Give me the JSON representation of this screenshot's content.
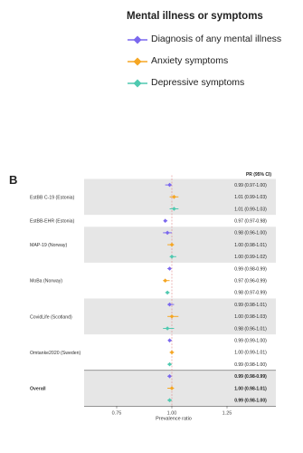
{
  "legend": {
    "title": "Mental illness or symptoms",
    "items": [
      {
        "label": "Diagnosis of any mental illness",
        "color": "#7b68ee",
        "icon": "diamond-marker"
      },
      {
        "label": "Anxiety symptoms",
        "color": "#f5a623",
        "icon": "diamond-marker"
      },
      {
        "label": "Depressive symptoms",
        "color": "#4fc9b0",
        "icon": "diamond-marker"
      }
    ]
  },
  "panel_letter": "B",
  "chart_data": {
    "type": "scatter",
    "subtype": "forest-plot",
    "ci_header": "PR (95% CI)",
    "xlabel": "Prevalence ratio",
    "xlim": [
      0.6,
      1.4
    ],
    "xticks": [
      0.75,
      1.0,
      1.25
    ],
    "xtick_labels": [
      "0.75",
      "1.00",
      "1.25"
    ],
    "reference_line": 1.0,
    "groups": [
      {
        "label": "EstBB C-19 (Estonia)",
        "shaded": true,
        "bold": false,
        "rows": [
          {
            "series": "Diagnosis of any mental illness",
            "pr": 0.99,
            "lo": 0.97,
            "hi": 1.0,
            "text": "0.99 (0.97-1.00)"
          },
          {
            "series": "Anxiety symptoms",
            "pr": 1.01,
            "lo": 0.99,
            "hi": 1.03,
            "text": "1.01 (0.99-1.03)"
          },
          {
            "series": "Depressive symptoms",
            "pr": 1.01,
            "lo": 0.99,
            "hi": 1.03,
            "text": "1.01 (0.99-1.03)"
          }
        ]
      },
      {
        "label": "EstBB-EHR (Estonia)",
        "shaded": false,
        "bold": false,
        "rows": [
          {
            "series": "Diagnosis of any mental illness",
            "pr": 0.97,
            "lo": 0.97,
            "hi": 0.98,
            "text": "0.97 (0.97-0.98)"
          }
        ]
      },
      {
        "label": "MAP-19 (Norway)",
        "shaded": true,
        "bold": false,
        "rows": [
          {
            "series": "Diagnosis of any mental illness",
            "pr": 0.98,
            "lo": 0.96,
            "hi": 1.0,
            "text": "0.98 (0.96-1.00)"
          },
          {
            "series": "Anxiety symptoms",
            "pr": 1.0,
            "lo": 0.98,
            "hi": 1.01,
            "text": "1.00 (0.98-1.01)"
          },
          {
            "series": "Depressive symptoms",
            "pr": 1.0,
            "lo": 0.99,
            "hi": 1.02,
            "text": "1.00 (0.99-1.02)"
          }
        ]
      },
      {
        "label": "MoBa (Norway)",
        "shaded": false,
        "bold": false,
        "rows": [
          {
            "series": "Diagnosis of any mental illness",
            "pr": 0.99,
            "lo": 0.98,
            "hi": 0.99,
            "text": "0.99 (0.98-0.99)"
          },
          {
            "series": "Anxiety symptoms",
            "pr": 0.97,
            "lo": 0.96,
            "hi": 0.99,
            "text": "0.97 (0.96-0.99)"
          },
          {
            "series": "Depressive symptoms",
            "pr": 0.98,
            "lo": 0.97,
            "hi": 0.99,
            "text": "0.98 (0.97-0.99)"
          }
        ]
      },
      {
        "label": "CovidLife (Scotland)",
        "shaded": true,
        "bold": false,
        "rows": [
          {
            "series": "Diagnosis of any mental illness",
            "pr": 0.99,
            "lo": 0.98,
            "hi": 1.01,
            "text": "0.99 (0.98-1.01)"
          },
          {
            "series": "Anxiety symptoms",
            "pr": 1.0,
            "lo": 0.98,
            "hi": 1.03,
            "text": "1.00 (0.98-1.03)"
          },
          {
            "series": "Depressive symptoms",
            "pr": 0.98,
            "lo": 0.96,
            "hi": 1.01,
            "text": "0.98 (0.96-1.01)"
          }
        ]
      },
      {
        "label": "Omtanke2020 (Sweden)",
        "shaded": false,
        "bold": false,
        "rows": [
          {
            "series": "Diagnosis of any mental illness",
            "pr": 0.99,
            "lo": 0.99,
            "hi": 1.0,
            "text": "0.99 (0.99-1.00)"
          },
          {
            "series": "Anxiety symptoms",
            "pr": 1.0,
            "lo": 0.99,
            "hi": 1.01,
            "text": "1.00 (0.99-1.01)"
          },
          {
            "series": "Depressive symptoms",
            "pr": 0.99,
            "lo": 0.98,
            "hi": 1.0,
            "text": "0.99 (0.98-1.00)"
          }
        ]
      },
      {
        "label": "Overall",
        "shaded": true,
        "bold": true,
        "rows": [
          {
            "series": "Diagnosis of any mental illness",
            "pr": 0.99,
            "lo": 0.98,
            "hi": 0.99,
            "text": "0.99 (0.98-0.99)"
          },
          {
            "series": "Anxiety symptoms",
            "pr": 1.0,
            "lo": 0.98,
            "hi": 1.01,
            "text": "1.00 (0.98-1.01)"
          },
          {
            "series": "Depressive symptoms",
            "pr": 0.99,
            "lo": 0.98,
            "hi": 1.0,
            "text": "0.99 (0.98-1.00)"
          }
        ]
      }
    ]
  }
}
